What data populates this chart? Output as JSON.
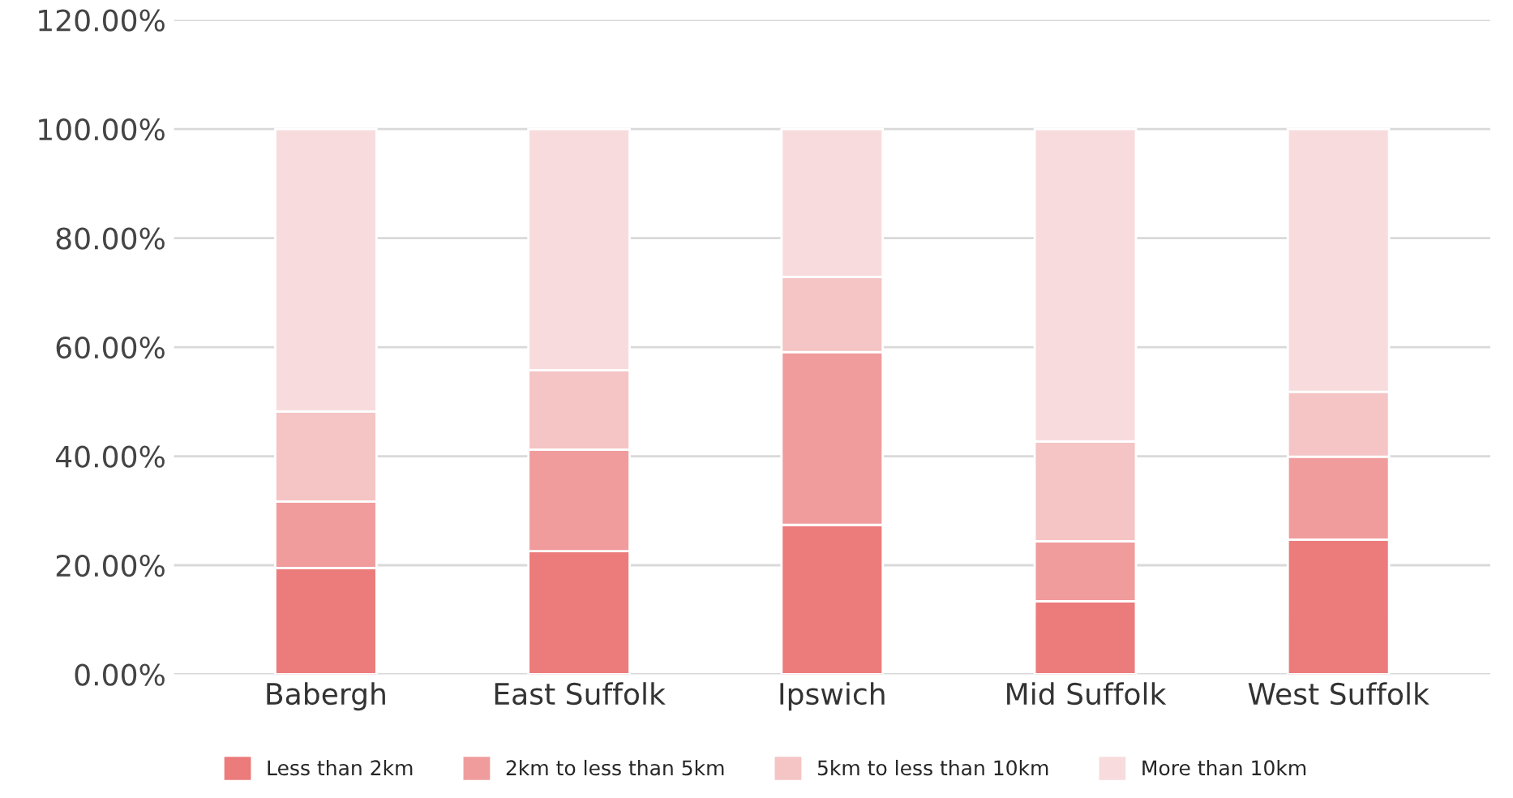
{
  "chart_data": {
    "type": "bar",
    "stacked": true,
    "categories": [
      "Babergh",
      "East Suffolk",
      "Ipswich",
      "Mid Suffolk",
      "West Suffolk"
    ],
    "series": [
      {
        "name": "Less than 2km",
        "color": "#ec7b7b",
        "values": [
          19.5,
          22.6,
          27.4,
          13.4,
          24.7
        ]
      },
      {
        "name": "2km to less than 5km",
        "color": "#f09c9d",
        "values": [
          12.2,
          18.6,
          31.7,
          11.0,
          15.2
        ]
      },
      {
        "name": "5km to less than 10km",
        "color": "#f5c4c4",
        "values": [
          16.5,
          14.6,
          13.8,
          18.3,
          11.9
        ]
      },
      {
        "name": "More than 10km",
        "color": "#f8dcdd",
        "values": [
          51.8,
          44.2,
          27.1,
          57.3,
          48.2
        ]
      }
    ],
    "ylim": [
      0,
      120
    ],
    "yticks": [
      {
        "value": 0,
        "label": "0.00%"
      },
      {
        "value": 20,
        "label": "20.00%"
      },
      {
        "value": 40,
        "label": "40.00%"
      },
      {
        "value": 60,
        "label": "60.00%"
      },
      {
        "value": 80,
        "label": "80.00%"
      },
      {
        "value": 100,
        "label": "100.00%"
      },
      {
        "value": 120,
        "label": "120.00%"
      }
    ],
    "grid": "y",
    "legend": "bottom"
  }
}
